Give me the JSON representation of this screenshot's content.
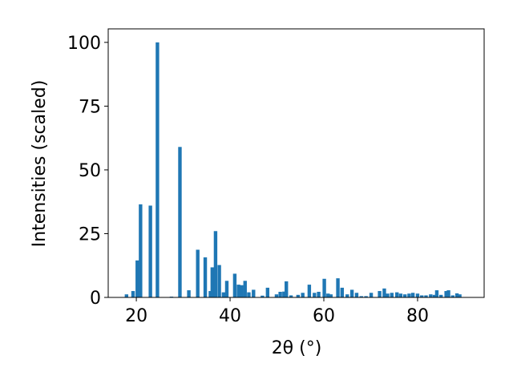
{
  "chart_data": {
    "type": "bar",
    "xlabel": "2θ (°)",
    "ylabel": "Intensities (scaled)",
    "x": [
      17.9,
      19.3,
      20.2,
      20.9,
      23.0,
      24.5,
      27.5,
      29.3,
      31.2,
      33.1,
      34.7,
      35.8,
      36.2,
      36.9,
      37.7,
      38.6,
      39.3,
      41.0,
      41.8,
      42.5,
      43.2,
      44.0,
      45.0,
      46.9,
      48.0,
      49.9,
      50.7,
      51.5,
      52.0,
      53.0,
      54.5,
      55.5,
      56.9,
      58.0,
      58.9,
      60.1,
      60.9,
      61.5,
      63.0,
      63.9,
      65.0,
      66.0,
      67.0,
      68.0,
      69.0,
      70.1,
      71.9,
      72.9,
      73.6,
      74.5,
      75.6,
      76.4,
      77.3,
      78.2,
      79.0,
      80.0,
      80.9,
      81.8,
      82.8,
      83.6,
      84.1,
      85.0,
      86.1,
      86.6,
      87.5,
      88.4,
      89.0
    ],
    "values": [
      1.2,
      2.5,
      14.5,
      36.5,
      36,
      100,
      0.3,
      59,
      2.8,
      18.7,
      15.7,
      2.5,
      11.8,
      26,
      12.7,
      2,
      6.5,
      9.3,
      5,
      4.8,
      6.5,
      2,
      3,
      0.7,
      3.8,
      1.2,
      2.2,
      2.3,
      6.3,
      0.8,
      1.0,
      1.8,
      5,
      1.8,
      2.2,
      7.3,
      1.5,
      1.2,
      7.5,
      3.8,
      1.2,
      3,
      1.8,
      0.5,
      0.5,
      1.8,
      2.5,
      3.5,
      1.5,
      1.8,
      2,
      1.5,
      1.2,
      1.5,
      1.8,
      1.5,
      0.8,
      0.8,
      1.2,
      1.0,
      2.8,
      1.0,
      2.5,
      2.8,
      0.8,
      1.6,
      1.2
    ],
    "color": "#1f77b4",
    "xlim": [
      14,
      94.2
    ],
    "xticks": [
      20,
      40,
      60,
      80
    ],
    "ylim": [
      0,
      105.3
    ],
    "yticks": [
      0,
      25,
      50,
      75,
      100
    ]
  }
}
